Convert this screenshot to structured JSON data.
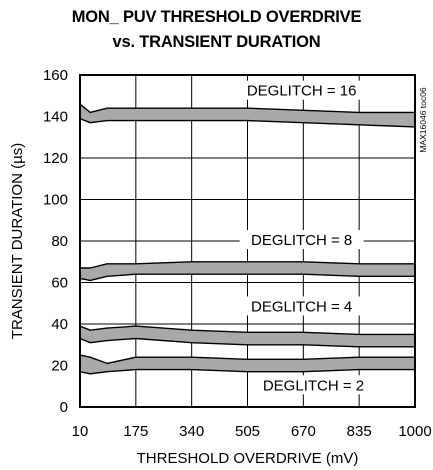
{
  "title": "MON_ PUV THRESHOLD OVERDRIVE",
  "subtitle": "vs. TRANSIENT DURATION",
  "side_label": "MAX16046 toc06",
  "colors": {
    "band_fill": "#a9a9a9",
    "frame": "#000000",
    "background": "#ffffff"
  },
  "chart_data": {
    "type": "area",
    "xlabel": "THRESHOLD OVERDRIVE (mV)",
    "ylabel": "TRANSIENT DURATION (µs)",
    "xlim": [
      10,
      1000
    ],
    "ylim": [
      0,
      160
    ],
    "x_ticks": [
      "10",
      "175",
      "340",
      "505",
      "670",
      "835",
      "1000"
    ],
    "y_ticks": [
      "0",
      "20",
      "40",
      "60",
      "80",
      "100",
      "120",
      "140",
      "160"
    ],
    "grid": true,
    "series": [
      {
        "name": "DEGLITCH = 16",
        "x": [
          10,
          40,
          90,
          175,
          340,
          505,
          670,
          835,
          1000
        ],
        "upper": [
          146,
          142,
          144,
          144,
          144,
          144,
          143,
          142,
          142
        ],
        "lower": [
          139,
          137,
          138,
          138,
          138,
          138,
          137,
          136,
          135
        ]
      },
      {
        "name": "DEGLITCH = 8",
        "x": [
          10,
          40,
          90,
          175,
          340,
          505,
          670,
          835,
          1000
        ],
        "upper": [
          67,
          67,
          69,
          69,
          70,
          70,
          70,
          69,
          69
        ],
        "lower": [
          62,
          61,
          63,
          64,
          64,
          64,
          64,
          63,
          63
        ]
      },
      {
        "name": "DEGLITCH = 4",
        "x": [
          10,
          40,
          90,
          175,
          340,
          505,
          670,
          835,
          1000
        ],
        "upper": [
          39,
          37,
          38,
          39,
          37,
          36,
          36,
          35,
          35
        ],
        "lower": [
          33,
          31,
          32,
          33,
          31,
          30,
          30,
          29,
          29
        ]
      },
      {
        "name": "DEGLITCH = 2",
        "x": [
          10,
          40,
          90,
          175,
          340,
          505,
          670,
          835,
          1000
        ],
        "upper": [
          25,
          24,
          21,
          24,
          24,
          23,
          23,
          24,
          24
        ],
        "lower": [
          17,
          16,
          17,
          18,
          18,
          17,
          17,
          18,
          18
        ]
      }
    ]
  }
}
